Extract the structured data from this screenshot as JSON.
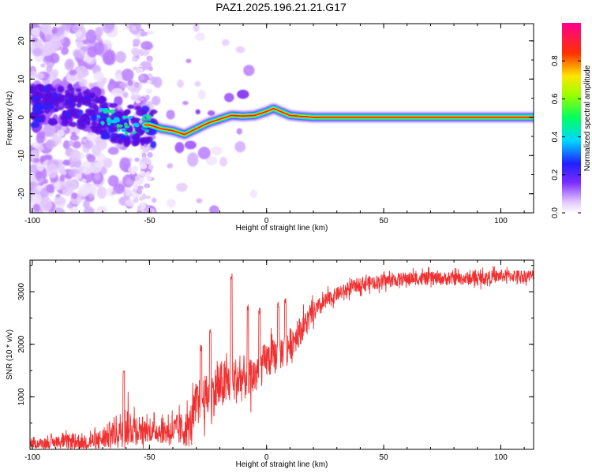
{
  "title": "PAZ1.2025.196.21.21.G17",
  "chart_data": [
    {
      "type": "heatmap",
      "xlabel": "Height of straight line (km)",
      "ylabel": "Frequency (Hz)",
      "xlim": [
        -101,
        114
      ],
      "ylim": [
        -25,
        24.5
      ],
      "xticks": [
        "-100",
        "-50",
        "0",
        "50",
        "100"
      ],
      "yticks": [
        "-20",
        "-10",
        "0",
        "10",
        "20"
      ],
      "colorbar": {
        "label": "Normalized spectral amplitude",
        "range": [
          0.0,
          1.0
        ],
        "ticks": [
          "0.0",
          "0.2",
          "0.4",
          "0.6",
          "0.8"
        ],
        "colormap": "rainbow (white-violet-blue-cyan-green-yellow-red-magenta)"
      },
      "ridge": {
        "x": [
          -100,
          -90,
          -80,
          -70,
          -60,
          -50,
          -45,
          -40,
          -35,
          -30,
          -25,
          -20,
          -15,
          -10,
          -5,
          0,
          3,
          6,
          10,
          15,
          20,
          30,
          50,
          80,
          114
        ],
        "y": [
          3,
          3,
          3,
          0,
          -2,
          -2,
          -3,
          -3.5,
          -4.5,
          -3,
          -1.5,
          -0.5,
          0.5,
          0.3,
          0.5,
          1.5,
          2.3,
          1.5,
          0.5,
          0.2,
          0,
          0,
          0,
          0,
          0
        ]
      }
    },
    {
      "type": "line",
      "xlabel": "Height of straight line (km)",
      "ylabel": "SNR (10 * v/v)",
      "xlim": [
        -101,
        114
      ],
      "ylim": [
        0,
        3600
      ],
      "xticks": [
        "-100",
        "-50",
        "0",
        "50",
        "100"
      ],
      "yticks": [
        "1000",
        "2000",
        "3000"
      ],
      "color": "#f03030",
      "trend": {
        "x": [
          -101,
          -85,
          -75,
          -70,
          -60,
          -50,
          -40,
          -33,
          -30,
          -25,
          -20,
          -15,
          -10,
          -5,
          0,
          5,
          10,
          15,
          20,
          25,
          30,
          35,
          40,
          50,
          60,
          70,
          80,
          90,
          100,
          114
        ],
        "y": [
          100,
          150,
          150,
          200,
          450,
          350,
          350,
          400,
          900,
          1000,
          1200,
          1300,
          1350,
          1400,
          1700,
          1800,
          2000,
          2300,
          2600,
          2800,
          2950,
          3050,
          3150,
          3200,
          3250,
          3250,
          3250,
          3250,
          3300,
          3300
        ]
      },
      "noise_amplitude": [
        [
          -101,
          90
        ],
        [
          -70,
          250
        ],
        [
          -60,
          500
        ],
        [
          -50,
          250
        ],
        [
          -40,
          350
        ],
        [
          -30,
          500
        ],
        [
          -20,
          600
        ],
        [
          -10,
          550
        ],
        [
          0,
          450
        ],
        [
          10,
          400
        ],
        [
          20,
          250
        ],
        [
          30,
          170
        ],
        [
          114,
          150
        ]
      ]
    }
  ]
}
